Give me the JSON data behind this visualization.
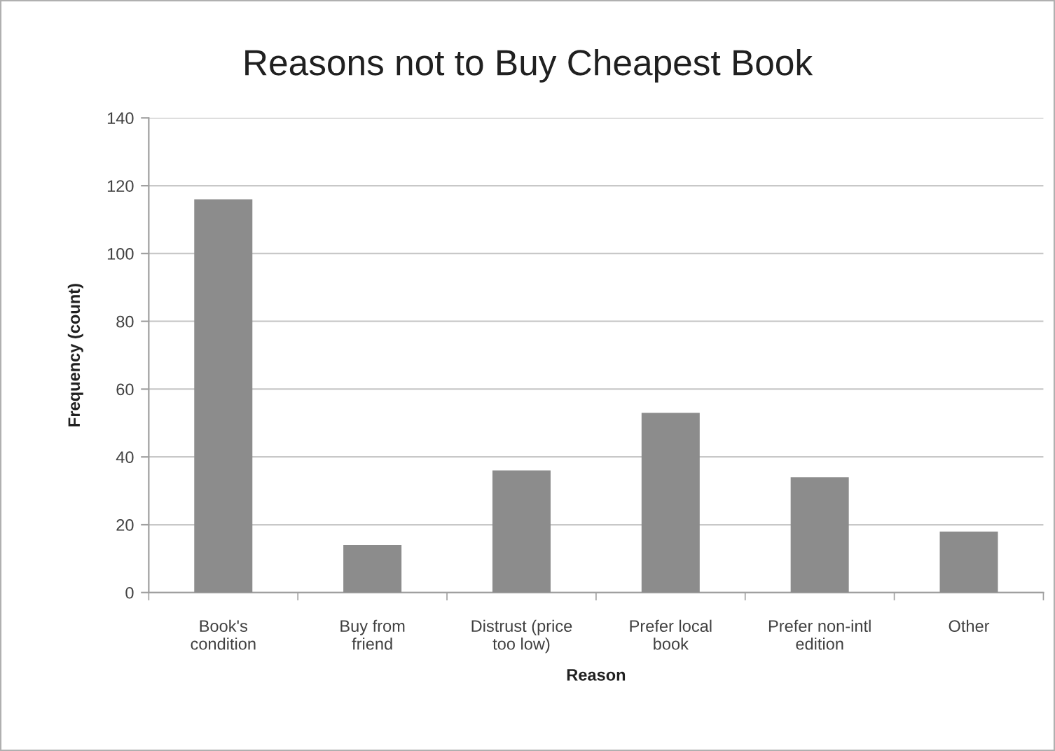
{
  "chart_data": {
    "type": "bar",
    "title": "Reasons not to Buy Cheapest Book",
    "xlabel": "Reason",
    "ylabel": "Frequency (count)",
    "categories": [
      "Book's\ncondition",
      "Buy from\nfriend",
      "Distrust (price\ntoo low)",
      "Prefer local\nbook",
      "Prefer non-intl\nedition",
      "Other"
    ],
    "values": [
      116,
      14,
      36,
      53,
      34,
      18
    ],
    "color": "#8c8c8c",
    "ylim": [
      0,
      140
    ],
    "yticks": [
      0,
      20,
      40,
      60,
      80,
      100,
      120,
      140
    ],
    "grid": "y",
    "legend": false
  }
}
